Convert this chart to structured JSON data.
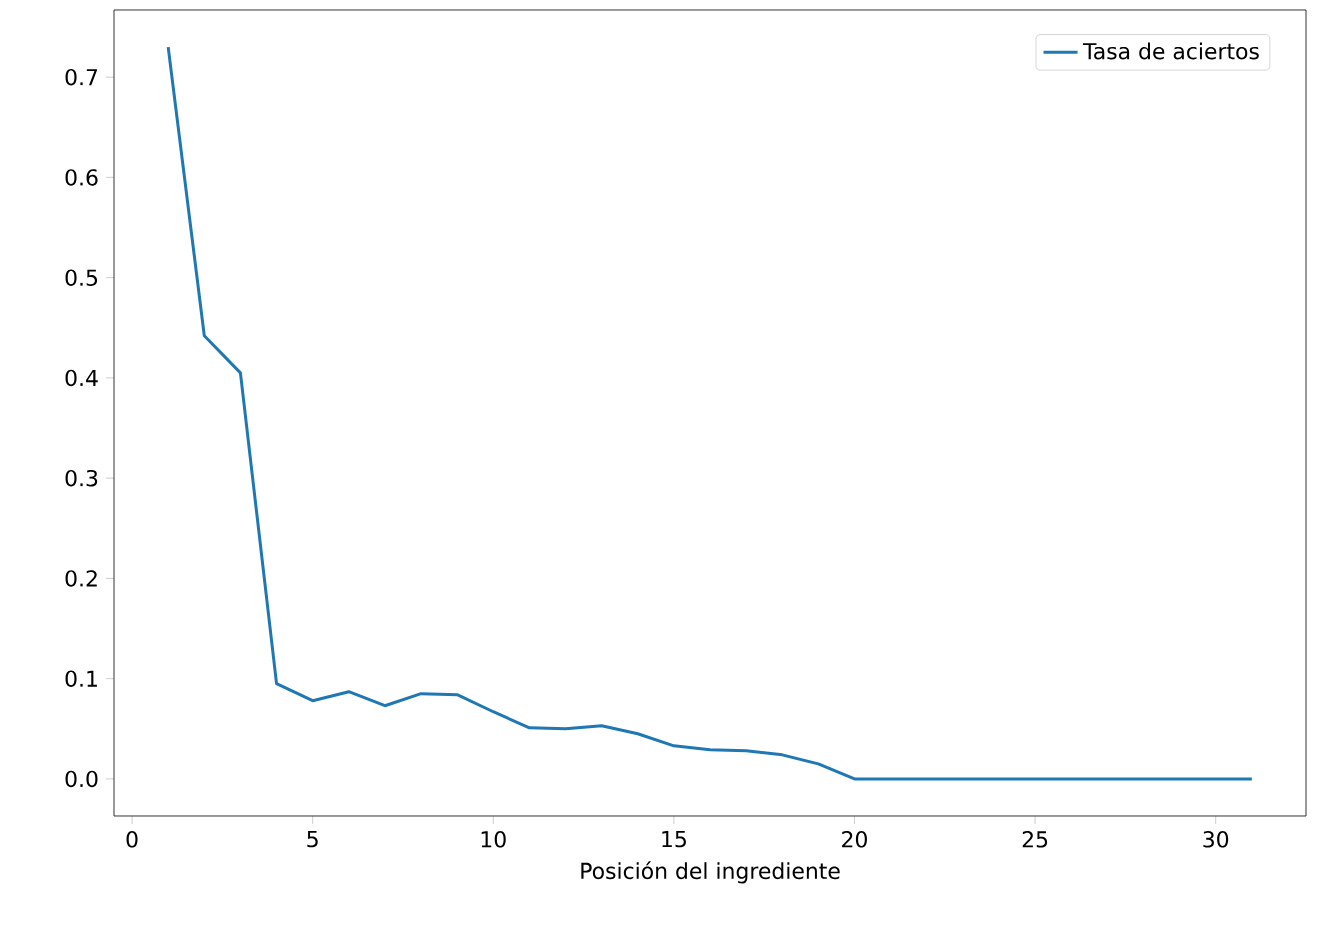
{
  "chart_data": {
    "type": "line",
    "xlabel": "Posición del ingrediente",
    "x": [
      1,
      2,
      3,
      4,
      5,
      6,
      7,
      8,
      9,
      10,
      11,
      12,
      13,
      14,
      15,
      16,
      17,
      18,
      19,
      20,
      21,
      22,
      23,
      24,
      25,
      26,
      27,
      28,
      29,
      30,
      31
    ],
    "series": [
      {
        "name": "Tasa de aciertos",
        "color": "#1f77b4",
        "values": [
          0.73,
          0.442,
          0.405,
          0.095,
          0.078,
          0.087,
          0.073,
          0.085,
          0.084,
          0.067,
          0.051,
          0.05,
          0.053,
          0.045,
          0.033,
          0.029,
          0.028,
          0.024,
          0.015,
          0,
          0,
          0,
          0,
          0,
          0,
          0,
          0,
          0,
          0,
          0,
          0
        ]
      }
    ],
    "xlim": [
      -0.5,
      32.5
    ],
    "ylim": [
      -0.037,
      0.767
    ],
    "xticks": [
      0,
      5,
      10,
      15,
      20,
      25,
      30
    ],
    "yticks": [
      {
        "value": 0,
        "label": "0.0"
      },
      0.1,
      0.2,
      0.3,
      0.4,
      0.5,
      0.6,
      0.7
    ],
    "legend": "top right",
    "grid": false,
    "marker": "none",
    "line_style": "solid"
  }
}
